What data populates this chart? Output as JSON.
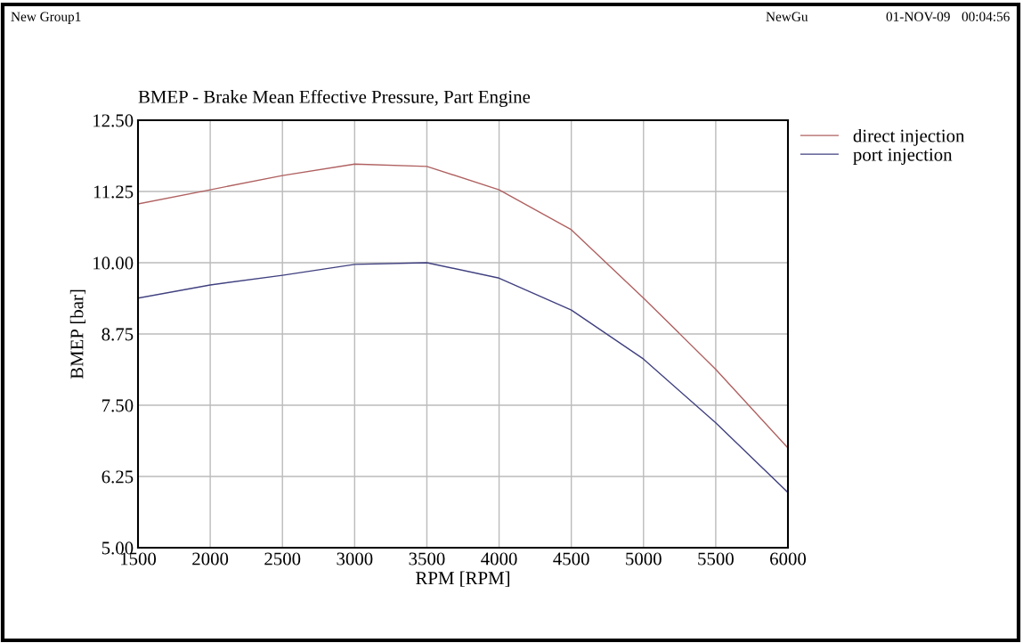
{
  "chart_data": {
    "type": "line",
    "title": "BMEP - Brake Mean Effective Pressure, Part Engine",
    "xlabel": "RPM [RPM]",
    "ylabel": "BMEP [bar]",
    "x": [
      1500,
      2000,
      2500,
      3000,
      3500,
      4000,
      4500,
      5000,
      5500,
      6000
    ],
    "series": [
      {
        "name": "direct injection",
        "color": "#b06060",
        "values": [
          11.03,
          11.28,
          11.53,
          11.73,
          11.69,
          11.28,
          10.58,
          9.38,
          8.13,
          6.75
        ]
      },
      {
        "name": "port injection",
        "color": "#404080",
        "values": [
          9.38,
          9.61,
          9.78,
          9.97,
          10.0,
          9.73,
          9.17,
          8.31,
          7.19,
          5.97
        ]
      }
    ],
    "xlim": [
      1500,
      6000
    ],
    "xticks": [
      1500,
      2000,
      2500,
      3000,
      3500,
      4000,
      4500,
      5000,
      5500,
      6000
    ],
    "ylim": [
      5,
      12.5
    ],
    "yticks": [
      {
        "value": 5,
        "label": "5.00"
      },
      {
        "value": 6.25,
        "label": "6.25"
      },
      {
        "value": 7.5,
        "label": "7.50"
      },
      {
        "value": 8.75,
        "label": "8.75"
      },
      {
        "value": 10,
        "label": "10.00"
      },
      {
        "value": 11.25,
        "label": "11.25"
      },
      {
        "value": 12.5,
        "label": "12.50"
      }
    ],
    "grid": true,
    "legend": "top right",
    "marker": "none",
    "line_style": "solid",
    "annotations": [
      "New Group1",
      "NewGu",
      "01-NOV-09",
      "00:04:56"
    ]
  }
}
